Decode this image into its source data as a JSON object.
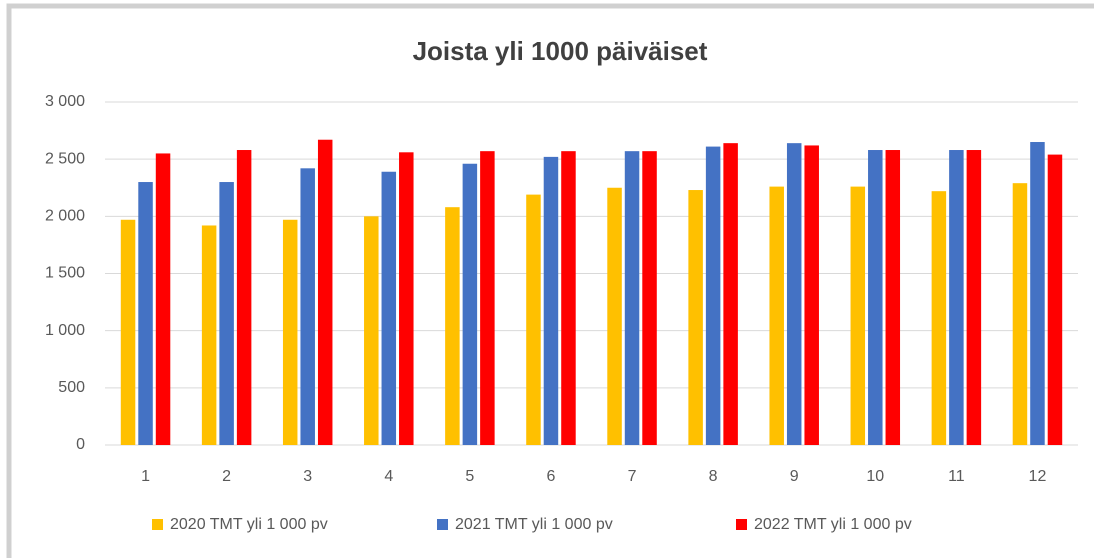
{
  "chart_data": {
    "type": "bar",
    "title": "Joista yli 1000 päiväiset",
    "categories": [
      "1",
      "2",
      "3",
      "4",
      "5",
      "6",
      "7",
      "8",
      "9",
      "10",
      "11",
      "12"
    ],
    "series": [
      {
        "name": "2020 TMT yli 1 000 pv",
        "color": "#ffc000",
        "values": [
          1970,
          1920,
          1970,
          2000,
          2080,
          2190,
          2250,
          2230,
          2260,
          2260,
          2220,
          2290
        ]
      },
      {
        "name": "2021 TMT yli 1 000 pv",
        "color": "#4472c4",
        "values": [
          2300,
          2300,
          2420,
          2390,
          2460,
          2520,
          2570,
          2610,
          2640,
          2580,
          2580,
          2650
        ]
      },
      {
        "name": "2022 TMT yli 1 000 pv",
        "color": "#ff0000",
        "values": [
          2550,
          2580,
          2670,
          2560,
          2570,
          2570,
          2570,
          2640,
          2620,
          2580,
          2580,
          2540
        ]
      }
    ],
    "ylim": [
      0,
      3000
    ],
    "yticks": [
      0,
      500,
      {
        "value": 1000,
        "label": "1 000"
      },
      {
        "value": 1500,
        "label": "1 500"
      },
      {
        "value": 2000,
        "label": "2 000"
      },
      {
        "value": 2500,
        "label": "2 500"
      },
      {
        "value": 3000,
        "label": "3 000"
      }
    ],
    "grid": true,
    "legend": "bottom"
  }
}
